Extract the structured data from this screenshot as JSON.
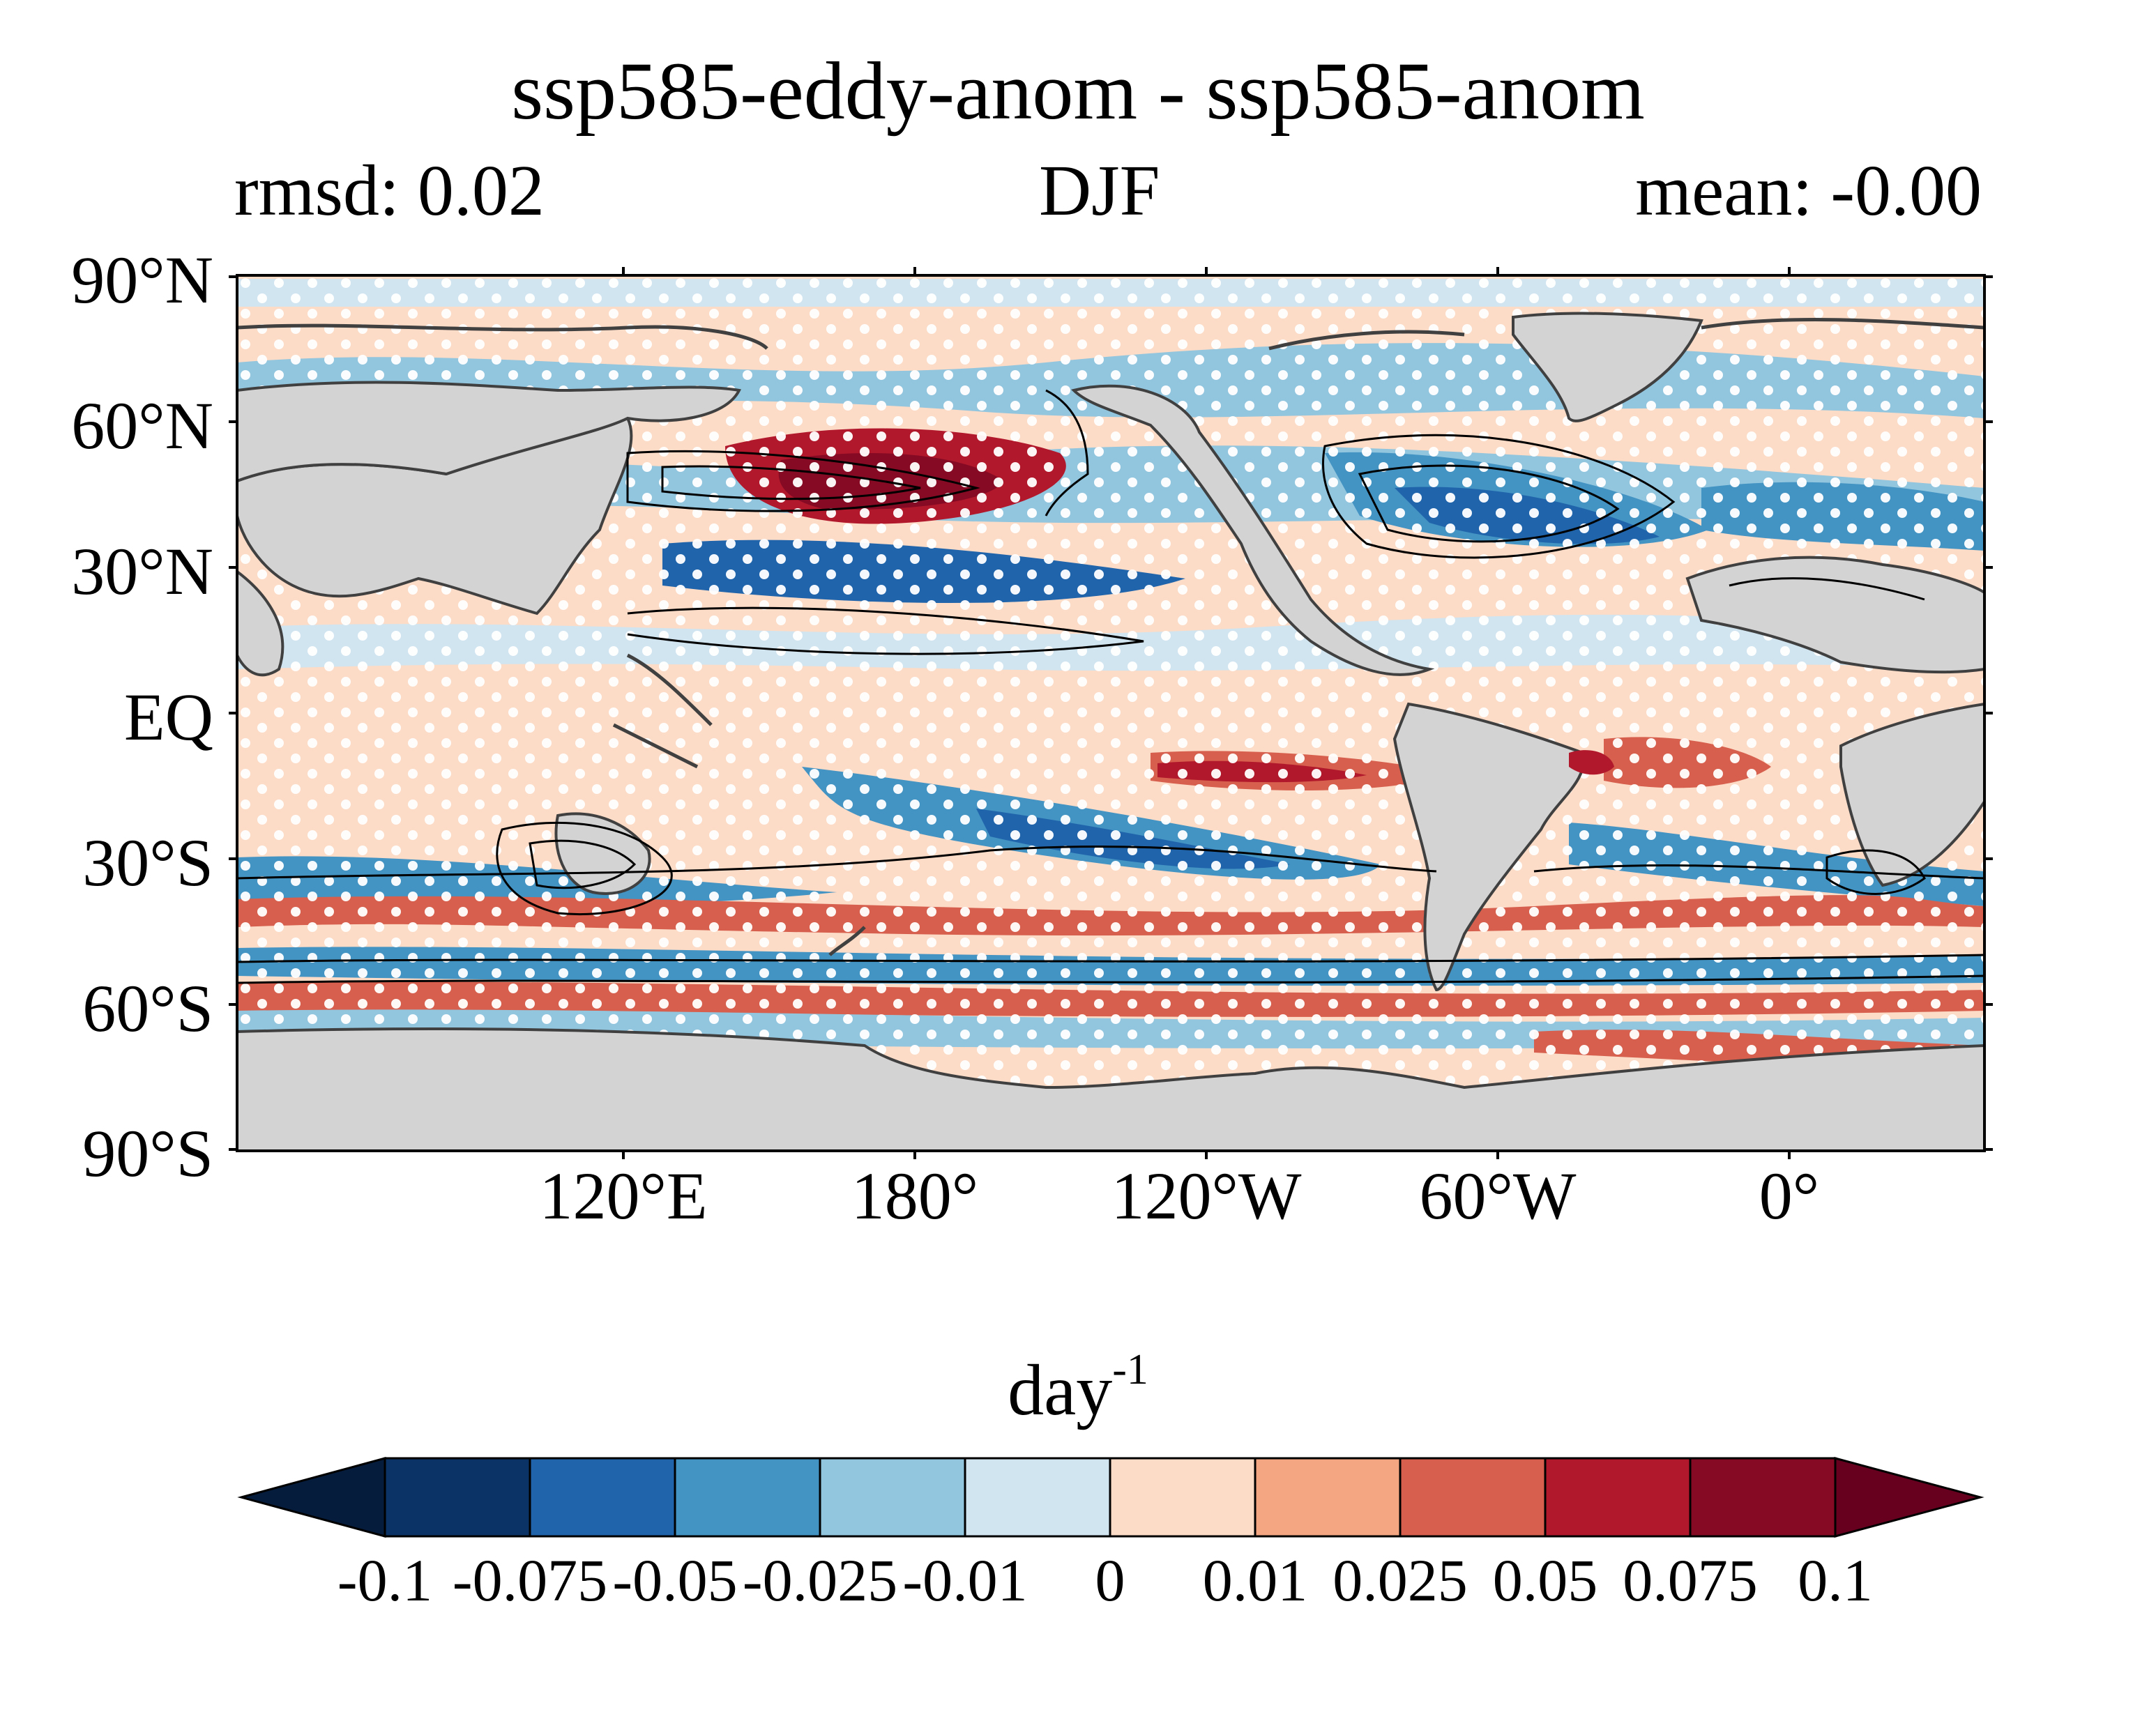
{
  "title": "ssp585-eddy-anom - ssp585-anom",
  "left_subtitle": "rmsd: 0.02",
  "center_subtitle": "DJF",
  "right_subtitle": "mean: -0.00",
  "lat_labels": [
    "90°N",
    "60°N",
    "30°N",
    "EQ",
    "30°S",
    "60°S",
    "90°S"
  ],
  "lon_labels": [
    "120°E",
    "180°",
    "120°W",
    "60°W",
    "0°"
  ],
  "colorbar": {
    "units_base": "day",
    "units_sup": "-1",
    "tick_labels": [
      "-0.1",
      "-0.075",
      "-0.05",
      "-0.025",
      "-0.01",
      "0",
      "0.01",
      "0.025",
      "0.05",
      "0.075",
      "0.1"
    ],
    "colors": [
      "#051c3d",
      "#0c3365",
      "#2065ab",
      "#4393c3",
      "#92c5de",
      "#d1e5f0",
      "#fcdbc7",
      "#f4a582",
      "#d6604d",
      "#b2182b",
      "#870a24",
      "#67001f"
    ]
  },
  "colors": {
    "land": "#d3d3d3",
    "stipple": "#ffffff",
    "contour": "#000000",
    "coastline": "#404040"
  }
}
